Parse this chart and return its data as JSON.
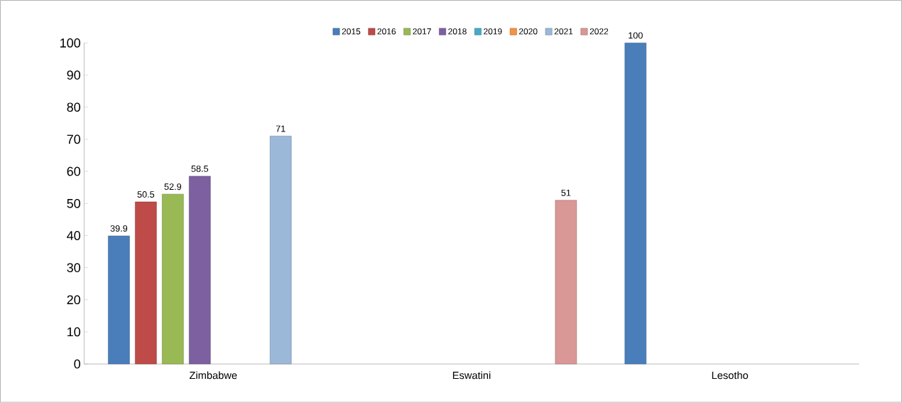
{
  "chart_data": {
    "type": "bar",
    "categories": [
      "Zimbabwe",
      "Eswatini",
      "Lesotho"
    ],
    "series": [
      {
        "name": "2015",
        "color": "#4a7ebb",
        "values": [
          39.9,
          null,
          100
        ]
      },
      {
        "name": "2016",
        "color": "#be4b48",
        "values": [
          50.5,
          null,
          null
        ]
      },
      {
        "name": "2017",
        "color": "#98b954",
        "values": [
          52.9,
          null,
          null
        ]
      },
      {
        "name": "2018",
        "color": "#7d60a0",
        "values": [
          58.5,
          null,
          null
        ]
      },
      {
        "name": "2019",
        "color": "#46aac5",
        "values": [
          null,
          null,
          null
        ]
      },
      {
        "name": "2020",
        "color": "#f69240",
        "values": [
          null,
          null,
          null
        ]
      },
      {
        "name": "2021",
        "color": "#9bb8d9",
        "values": [
          71,
          null,
          null
        ]
      },
      {
        "name": "2022",
        "color": "#d99795",
        "values": [
          null,
          51,
          null
        ]
      }
    ],
    "ylim": [
      0,
      100
    ],
    "yticks": [
      0,
      10,
      20,
      30,
      40,
      50,
      60,
      70,
      80,
      90,
      100
    ],
    "data_labels": true,
    "legend": "top",
    "grid": false
  }
}
